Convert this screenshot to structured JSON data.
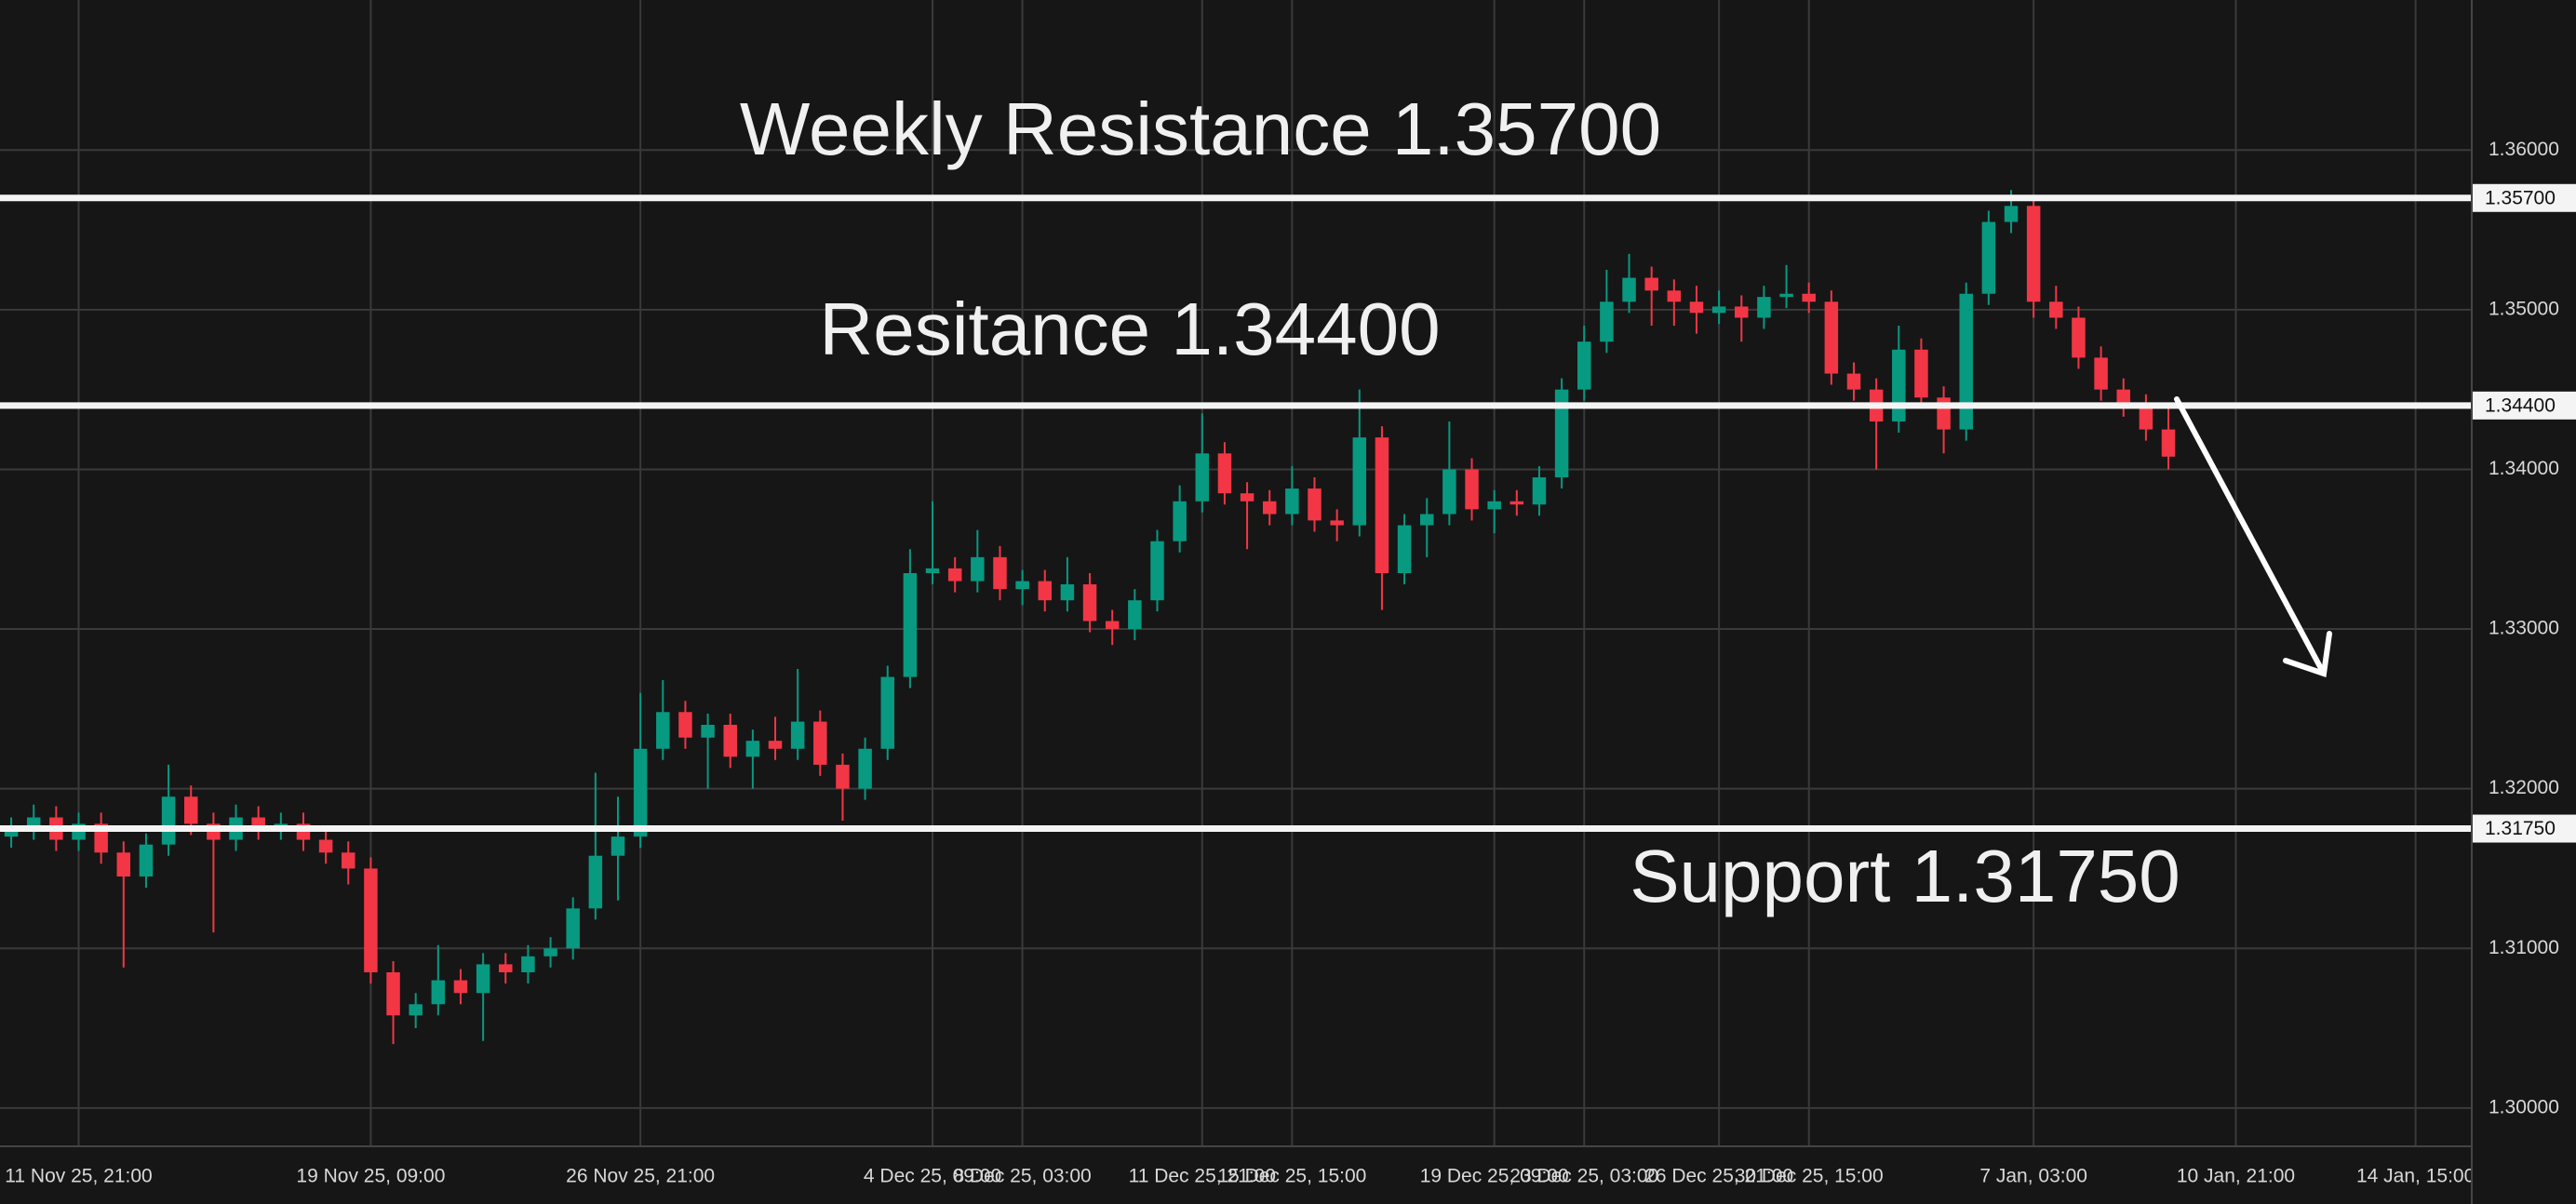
{
  "chart_data": {
    "type": "candlestick",
    "categories": [
      null,
      null,
      null,
      "11 Nov 25, 21:00",
      null,
      null,
      null,
      null,
      null,
      null,
      null,
      null,
      null,
      null,
      null,
      null,
      "19 Nov 25, 09:00",
      null,
      null,
      null,
      null,
      null,
      null,
      null,
      null,
      null,
      null,
      null,
      "26 Nov 25, 21:00",
      null,
      null,
      null,
      null,
      null,
      null,
      null,
      null,
      null,
      null,
      null,
      null,
      "4 Dec 25, 09:00",
      null,
      null,
      null,
      "8 Dec 25, 03:00",
      null,
      null,
      null,
      null,
      null,
      null,
      null,
      "11 Dec 25, 21:00",
      null,
      null,
      null,
      "15 Dec 25, 15:00",
      null,
      null,
      null,
      null,
      null,
      null,
      null,
      null,
      "19 Dec 25, 09:00",
      null,
      null,
      null,
      "23 Dec 25, 03:00",
      null,
      null,
      null,
      null,
      null,
      "26 Dec 25, 21:00",
      null,
      null,
      null,
      "30 Dec 25, 15:00",
      null,
      null,
      null,
      null,
      null,
      null,
      null,
      null,
      null,
      "7 Jan, 03:00",
      null,
      null,
      null,
      null,
      null,
      null,
      null,
      null,
      "10 Jan, 21:00",
      null,
      null,
      null,
      null,
      null,
      null,
      null,
      "14 Jan, 15:00",
      null,
      null
    ],
    "open": [
      1.317,
      1.3175,
      1.3182,
      1.3168,
      1.3178,
      1.316,
      1.3145,
      1.3165,
      1.3195,
      1.3178,
      1.3168,
      1.3182,
      1.3175,
      1.3178,
      1.3168,
      1.316,
      1.315,
      1.3085,
      1.3058,
      1.3065,
      1.308,
      1.3072,
      1.309,
      1.3085,
      1.3095,
      1.31,
      1.3125,
      1.3158,
      1.317,
      1.3225,
      1.3248,
      1.3232,
      1.324,
      1.322,
      1.323,
      1.3225,
      1.3242,
      1.3215,
      1.32,
      1.3225,
      1.327,
      1.3335,
      1.3338,
      1.333,
      1.3345,
      1.3325,
      1.333,
      1.3318,
      1.3328,
      1.3305,
      1.33,
      1.3318,
      1.3355,
      1.338,
      1.341,
      1.3385,
      1.338,
      1.3372,
      1.3388,
      1.3368,
      1.3365,
      1.342,
      1.3335,
      1.3365,
      1.3372,
      1.34,
      1.3375,
      1.338,
      1.3378,
      1.3395,
      1.345,
      1.348,
      1.3505,
      1.352,
      1.3512,
      1.3505,
      1.3498,
      1.3502,
      1.3495,
      1.3508,
      1.351,
      1.3505,
      1.346,
      1.345,
      1.343,
      1.3475,
      1.3445,
      1.3425,
      1.351,
      1.3555,
      1.3565,
      1.3505,
      1.3495,
      1.347,
      1.345,
      1.344,
      1.3425,
      null,
      null,
      null,
      null,
      null,
      null,
      null,
      null,
      null,
      null,
      null,
      null,
      null
    ],
    "high": [
      1.3182,
      1.319,
      1.3189,
      1.3185,
      1.3185,
      1.3167,
      1.3172,
      1.3215,
      1.3202,
      1.3185,
      1.319,
      1.3189,
      1.3185,
      1.3185,
      1.3175,
      1.3167,
      1.3157,
      1.3092,
      1.3072,
      1.3102,
      1.3087,
      1.3097,
      1.3097,
      1.3102,
      1.3107,
      1.3132,
      1.321,
      1.3195,
      1.326,
      1.3268,
      1.3255,
      1.3247,
      1.3247,
      1.3237,
      1.3245,
      1.3275,
      1.3249,
      1.3222,
      1.3232,
      1.3277,
      1.335,
      1.338,
      1.3345,
      1.3362,
      1.3352,
      1.3337,
      1.3337,
      1.3345,
      1.3335,
      1.3312,
      1.3325,
      1.3362,
      1.339,
      1.3435,
      1.3417,
      1.3392,
      1.3387,
      1.3402,
      1.3395,
      1.3375,
      1.345,
      1.3427,
      1.3372,
      1.3382,
      1.343,
      1.3407,
      1.3387,
      1.3387,
      1.3402,
      1.3457,
      1.349,
      1.3525,
      1.3535,
      1.3527,
      1.3519,
      1.3515,
      1.3512,
      1.3509,
      1.3515,
      1.3528,
      1.3517,
      1.3512,
      1.3467,
      1.3457,
      1.349,
      1.3482,
      1.3452,
      1.3517,
      1.3562,
      1.3575,
      1.3572,
      1.3515,
      1.3502,
      1.3477,
      1.3457,
      1.3447,
      1.344,
      null,
      null,
      null,
      null,
      null,
      null,
      null,
      null,
      null,
      null,
      null,
      null,
      null
    ],
    "low": [
      1.3163,
      1.3168,
      1.3161,
      1.3161,
      1.3153,
      1.3088,
      1.3138,
      1.3158,
      1.3171,
      1.311,
      1.3161,
      1.3168,
      1.3168,
      1.3161,
      1.3153,
      1.314,
      1.3078,
      1.304,
      1.305,
      1.3058,
      1.3065,
      1.3042,
      1.3078,
      1.3078,
      1.3088,
      1.3093,
      1.3118,
      1.313,
      1.3163,
      1.3218,
      1.3225,
      1.32,
      1.3213,
      1.32,
      1.3218,
      1.3218,
      1.3208,
      1.318,
      1.3193,
      1.3218,
      1.3263,
      1.3328,
      1.3323,
      1.3323,
      1.3318,
      1.3315,
      1.3311,
      1.3311,
      1.3298,
      1.329,
      1.3293,
      1.3311,
      1.3348,
      1.3373,
      1.3378,
      1.335,
      1.3365,
      1.3365,
      1.3361,
      1.3355,
      1.3358,
      1.3312,
      1.3328,
      1.3345,
      1.3365,
      1.3368,
      1.336,
      1.3371,
      1.3371,
      1.3388,
      1.3443,
      1.3473,
      1.3498,
      1.349,
      1.349,
      1.3485,
      1.3491,
      1.348,
      1.3488,
      1.3501,
      1.3498,
      1.3453,
      1.3443,
      1.34,
      1.3423,
      1.3438,
      1.341,
      1.3418,
      1.3503,
      1.3548,
      1.3495,
      1.3488,
      1.3463,
      1.3443,
      1.3433,
      1.3418,
      1.34,
      null,
      null,
      null,
      null,
      null,
      null,
      null,
      null,
      null,
      null,
      null,
      null,
      null
    ],
    "close": [
      1.3175,
      1.3182,
      1.3168,
      1.3178,
      1.316,
      1.3145,
      1.3165,
      1.3195,
      1.3178,
      1.3168,
      1.3182,
      1.3175,
      1.3178,
      1.3168,
      1.316,
      1.315,
      1.3085,
      1.3058,
      1.3065,
      1.308,
      1.3072,
      1.309,
      1.3085,
      1.3095,
      1.31,
      1.3125,
      1.3158,
      1.317,
      1.3225,
      1.3248,
      1.3232,
      1.324,
      1.322,
      1.323,
      1.3225,
      1.3242,
      1.3215,
      1.32,
      1.3225,
      1.327,
      1.3335,
      1.3338,
      1.333,
      1.3345,
      1.3325,
      1.333,
      1.3318,
      1.3328,
      1.3305,
      1.33,
      1.3318,
      1.3355,
      1.338,
      1.341,
      1.3385,
      1.338,
      1.3372,
      1.3388,
      1.3368,
      1.3365,
      1.342,
      1.3335,
      1.3365,
      1.3372,
      1.34,
      1.3375,
      1.338,
      1.3378,
      1.3395,
      1.345,
      1.348,
      1.3505,
      1.352,
      1.3512,
      1.3505,
      1.3498,
      1.3502,
      1.3495,
      1.3508,
      1.351,
      1.3505,
      1.346,
      1.345,
      1.343,
      1.3475,
      1.3445,
      1.3425,
      1.351,
      1.3555,
      1.3565,
      1.3505,
      1.3495,
      1.347,
      1.345,
      1.344,
      1.3425,
      1.3408,
      null,
      null,
      null,
      null,
      null,
      null,
      null,
      null,
      null,
      null,
      null,
      null,
      null
    ],
    "up_color": "#089981",
    "down_color": "#f23645",
    "ylim": [
      1.2976,
      1.3694
    ],
    "yticks": [
      {
        "value": 1.3,
        "label": "1.30000"
      },
      {
        "value": 1.31,
        "label": "1.31000"
      },
      {
        "value": 1.32,
        "label": "1.32000"
      },
      {
        "value": 1.33,
        "label": "1.33000"
      },
      {
        "value": 1.34,
        "label": "1.34000"
      },
      {
        "value": 1.35,
        "label": "1.35000"
      },
      {
        "value": 1.36,
        "label": "1.36000"
      }
    ],
    "grid": true,
    "levels": [
      {
        "value": 1.357,
        "label": "1.35700"
      },
      {
        "value": 1.344,
        "label": "1.34400"
      },
      {
        "value": 1.3175,
        "label": "1.31750"
      }
    ],
    "annotations": [
      "Weekly Resistance 1.35700",
      "Resitance 1.34400",
      "Support 1.31750"
    ]
  }
}
